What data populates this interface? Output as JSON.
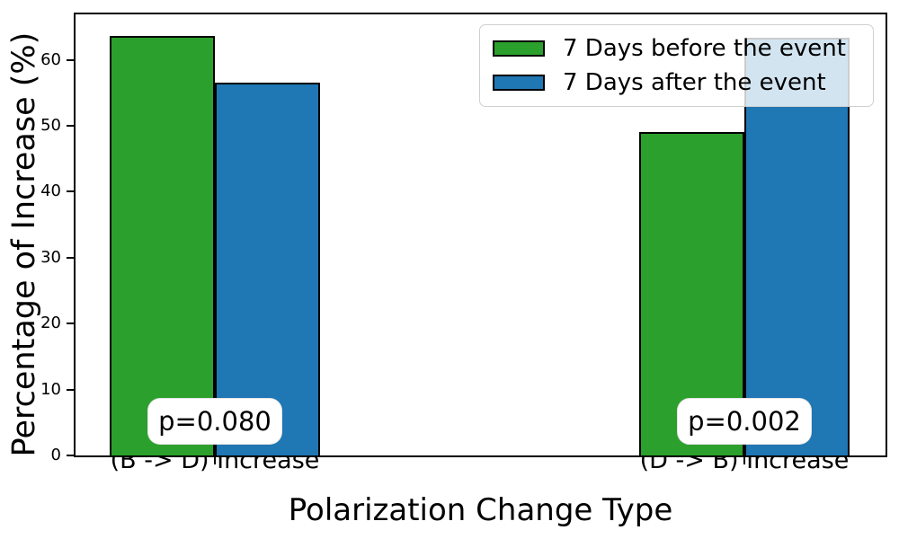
{
  "chart_data": {
    "type": "bar",
    "title": "",
    "xlabel": "Polarization Change Type",
    "ylabel": "Percentage of Increase (%)",
    "categories": [
      "(B -> D) Increase",
      "(D -> B) Increase"
    ],
    "series": [
      {
        "name": "7 Days before the event",
        "color": "#2ca02c",
        "values": [
          63.6,
          49.0
        ]
      },
      {
        "name": "7 Days after the event",
        "color": "#1f77b4",
        "values": [
          56.6,
          63.3
        ]
      }
    ],
    "annotations": [
      {
        "category": "(B -> D) Increase",
        "label": "p=0.080"
      },
      {
        "category": "(D -> B) Increase",
        "label": "p=0.002"
      }
    ],
    "ylim": [
      0,
      66.9
    ],
    "yticks": [
      0,
      10,
      20,
      30,
      40,
      50,
      60
    ],
    "legend_position": "upper right",
    "grid": false,
    "bar_edge_color": "#000000",
    "background_color": "#ffffff"
  }
}
